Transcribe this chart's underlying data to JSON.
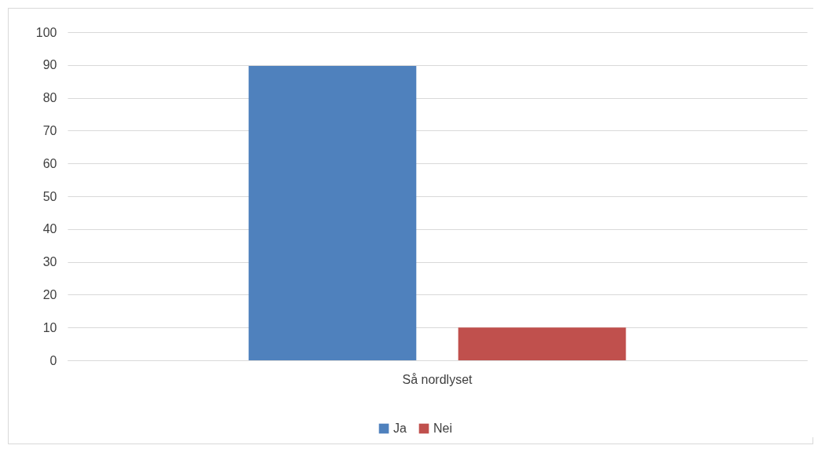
{
  "chart_data": {
    "type": "bar",
    "categories": [
      "Så nordlyset"
    ],
    "series": [
      {
        "name": "Ja",
        "color": "#4f81bd",
        "values": [
          89.7
        ]
      },
      {
        "name": "Nei",
        "color": "#c0504d",
        "values": [
          10
        ]
      }
    ],
    "ylim": [
      0,
      100
    ],
    "yticks": [
      0,
      10,
      20,
      30,
      40,
      50,
      60,
      70,
      80,
      90,
      100
    ],
    "grid": "y",
    "legend": "bottom"
  }
}
